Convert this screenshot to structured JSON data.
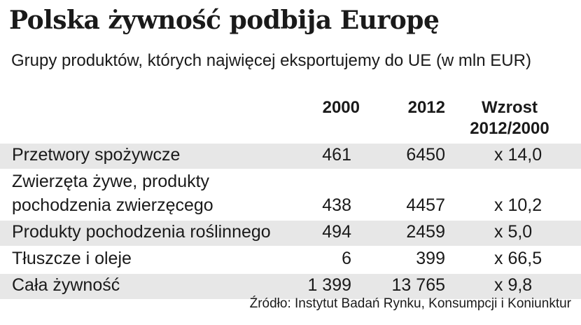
{
  "title": "Polska żywność podbija  Europę",
  "subtitle": "Grupy produktów, których najwięcej eksportujemy  do UE (w mln EUR)",
  "source": "Źródło: Instytut Badań Rynku, Konsumpcji i Koniunktur",
  "colors": {
    "row_shade": "#e7e7e7",
    "text": "#1a1a1a",
    "background": "#ffffff"
  },
  "chart_data": {
    "type": "table",
    "title": "Polska żywność podbija  Europę",
    "subtitle": "Grupy produktów, których najwięcej eksportujemy  do UE (w mln EUR)",
    "columns": [
      "2000",
      "2012",
      "Wzrost",
      "2012/2000"
    ],
    "rows": [
      {
        "label_lines": [
          "Przetwory spożywcze"
        ],
        "v2000": "461",
        "v2012": "6450",
        "growth": "x 14,0"
      },
      {
        "label_lines": [
          "Zwierzęta żywe, produkty",
          "pochodzenia zwierzęcego"
        ],
        "v2000": "438",
        "v2012": "4457",
        "growth": "x 10,2"
      },
      {
        "label_lines": [
          "Produkty pochodzenia roślinnego"
        ],
        "v2000": "494",
        "v2012": "2459",
        "growth": "x 5,0"
      },
      {
        "label_lines": [
          "Tłuszcze i oleje"
        ],
        "v2000": "6",
        "v2012": "399",
        "growth": "x 66,5"
      },
      {
        "label_lines": [
          "Cała żywność"
        ],
        "v2000": "1 399",
        "v2012": "13 765",
        "growth": "x 9,8"
      }
    ]
  }
}
